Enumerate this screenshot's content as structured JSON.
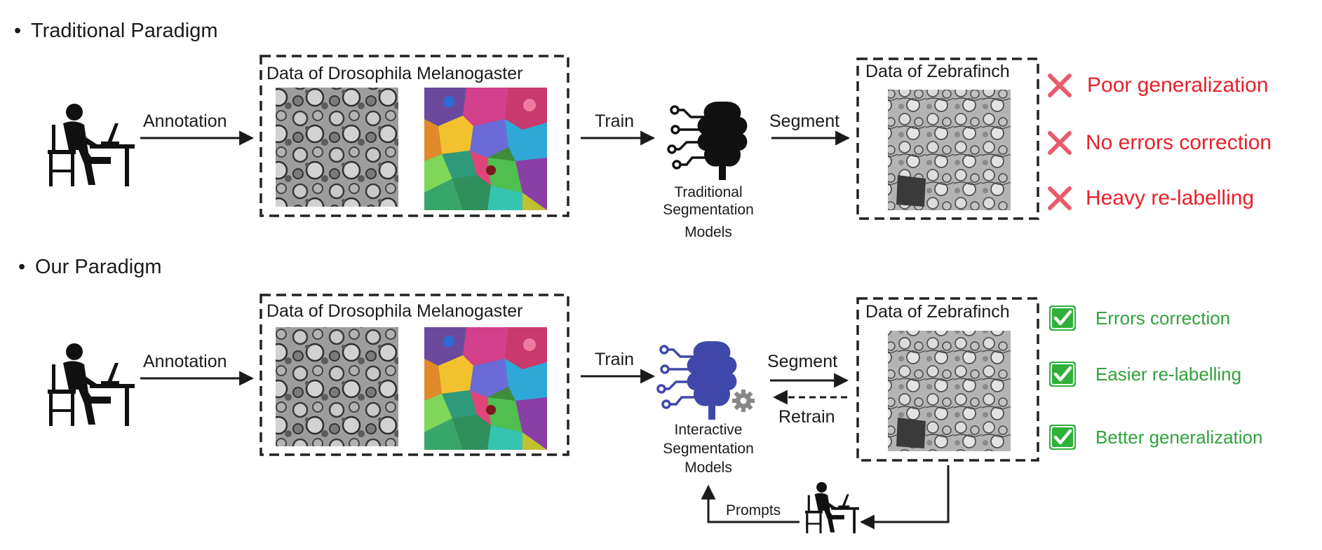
{
  "traditional": {
    "heading": "Traditional Paradigm",
    "annotation_label": "Annotation",
    "train_data_title": "Data of Drosophila Melanogaster",
    "train_label": "Train",
    "model_caption": [
      "Traditional",
      "Segmentation",
      "Models"
    ],
    "segment_label": "Segment",
    "target_data_title": "Data of Zebrafinch",
    "drawbacks": [
      "Poor generalization",
      "No errors correction",
      "Heavy re-labelling"
    ]
  },
  "ours": {
    "heading": "Our Paradigm",
    "annotation_label": "Annotation",
    "train_data_title": "Data of Drosophila Melanogaster",
    "train_label": "Train",
    "model_caption": [
      "Interactive",
      "Segmentation",
      "Models"
    ],
    "segment_label": "Segment",
    "retrain_label": "Retrain",
    "target_data_title": "Data of Zebrafinch",
    "prompts_label": "Prompts",
    "benefits": [
      "Errors correction",
      "Easier re-labelling",
      "Better generalization"
    ]
  },
  "colors": {
    "bad": "#e8202a",
    "cross": "#e85a6a",
    "good": "#2fa33a",
    "check_fill": "#2fb03a",
    "model_traditional": "#111111",
    "model_interactive": "#3f48a8",
    "gear": "#888888"
  },
  "icons": {
    "person": "person-at-laptop-icon",
    "traditional_model": "brain-circuit-icon",
    "interactive_model": "brain-circuit-gear-icon",
    "drawback": "cross-icon",
    "benefit": "checkmark-icon"
  }
}
